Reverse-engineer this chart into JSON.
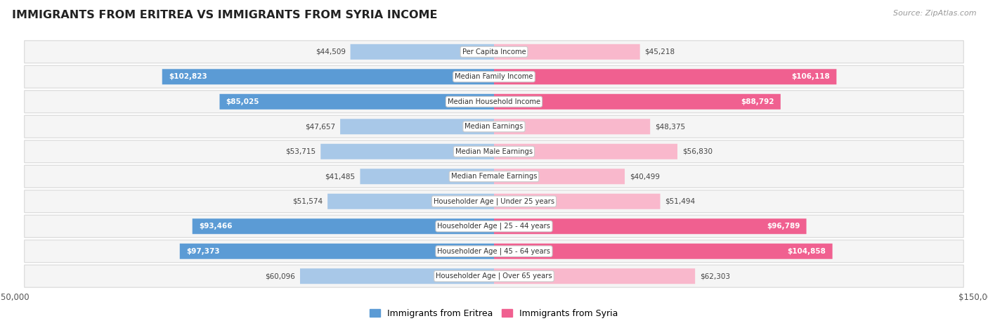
{
  "title": "IMMIGRANTS FROM ERITREA VS IMMIGRANTS FROM SYRIA INCOME",
  "source": "Source: ZipAtlas.com",
  "categories": [
    "Per Capita Income",
    "Median Family Income",
    "Median Household Income",
    "Median Earnings",
    "Median Male Earnings",
    "Median Female Earnings",
    "Householder Age | Under 25 years",
    "Householder Age | 25 - 44 years",
    "Householder Age | 45 - 64 years",
    "Householder Age | Over 65 years"
  ],
  "eritrea_values": [
    44509,
    102823,
    85025,
    47657,
    53715,
    41485,
    51574,
    93466,
    97373,
    60096
  ],
  "syria_values": [
    45218,
    106118,
    88792,
    48375,
    56830,
    40499,
    51494,
    96789,
    104858,
    62303
  ],
  "eritrea_labels": [
    "$44,509",
    "$102,823",
    "$85,025",
    "$47,657",
    "$53,715",
    "$41,485",
    "$51,574",
    "$93,466",
    "$97,373",
    "$60,096"
  ],
  "syria_labels": [
    "$45,218",
    "$106,118",
    "$88,792",
    "$48,375",
    "$56,830",
    "$40,499",
    "$51,494",
    "$96,789",
    "$104,858",
    "$62,303"
  ],
  "eritrea_color_light": "#a8c8e8",
  "eritrea_color_dark": "#5b9bd5",
  "syria_color_light": "#f9b8cc",
  "syria_color_dark": "#f06090",
  "eritrea_threshold": 80000,
  "syria_threshold": 80000,
  "max_value": 150000,
  "bar_height": 0.62,
  "row_bg": "#f0f0f0",
  "row_shadow": "#e0e0e0",
  "legend_eritrea": "Immigrants from Eritrea",
  "legend_syria": "Immigrants from Syria",
  "legend_eritrea_color": "#5b9bd5",
  "legend_syria_color": "#f06090"
}
